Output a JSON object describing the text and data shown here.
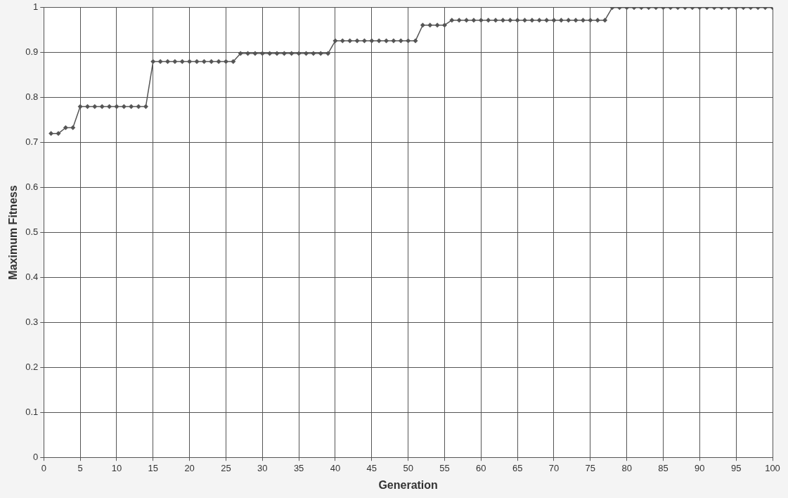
{
  "chart_data": {
    "type": "line",
    "xlabel": "Generation",
    "ylabel": "Maximum Fitness",
    "x": [
      1,
      2,
      3,
      4,
      5,
      6,
      7,
      8,
      9,
      10,
      11,
      12,
      13,
      14,
      15,
      16,
      17,
      18,
      19,
      20,
      21,
      22,
      23,
      24,
      25,
      26,
      27,
      28,
      29,
      30,
      31,
      32,
      33,
      34,
      35,
      36,
      37,
      38,
      39,
      40,
      41,
      42,
      43,
      44,
      45,
      46,
      47,
      48,
      49,
      50,
      51,
      52,
      53,
      54,
      55,
      56,
      57,
      58,
      59,
      60,
      61,
      62,
      63,
      64,
      65,
      66,
      67,
      68,
      69,
      70,
      71,
      72,
      73,
      74,
      75,
      76,
      77,
      78,
      79,
      80,
      81,
      82,
      83,
      84,
      85,
      86,
      87,
      88,
      89,
      90,
      91,
      92,
      93,
      94,
      95,
      96,
      97,
      98,
      99,
      100
    ],
    "series": [
      {
        "color": "#555555",
        "values": [
          0.72,
          0.72,
          0.733,
          0.733,
          0.78,
          0.78,
          0.78,
          0.78,
          0.78,
          0.78,
          0.78,
          0.78,
          0.78,
          0.78,
          0.88,
          0.88,
          0.88,
          0.88,
          0.88,
          0.88,
          0.88,
          0.88,
          0.88,
          0.88,
          0.88,
          0.88,
          0.898,
          0.898,
          0.898,
          0.898,
          0.898,
          0.898,
          0.898,
          0.898,
          0.898,
          0.898,
          0.898,
          0.898,
          0.898,
          0.926,
          0.926,
          0.926,
          0.926,
          0.926,
          0.926,
          0.926,
          0.926,
          0.926,
          0.926,
          0.926,
          0.926,
          0.961,
          0.961,
          0.961,
          0.961,
          0.972,
          0.972,
          0.972,
          0.972,
          0.972,
          0.972,
          0.972,
          0.972,
          0.972,
          0.972,
          0.972,
          0.972,
          0.972,
          0.972,
          0.972,
          0.972,
          0.972,
          0.972,
          0.972,
          0.972,
          0.972,
          0.972,
          1,
          1,
          1,
          1,
          1,
          1,
          1,
          1,
          1,
          1,
          1,
          1,
          1,
          1,
          1,
          1,
          1,
          1,
          1,
          1,
          1,
          1,
          1
        ]
      }
    ],
    "xlim": [
      0,
      100
    ],
    "xticks": [
      0,
      5,
      10,
      15,
      20,
      25,
      30,
      35,
      40,
      45,
      50,
      55,
      60,
      65,
      70,
      75,
      80,
      85,
      90,
      95,
      100
    ],
    "ylim": [
      0,
      1
    ],
    "yticks": [
      0,
      0.1,
      0.2,
      0.3,
      0.4,
      0.5,
      0.6,
      0.7,
      0.8,
      0.9,
      1
    ],
    "grid": true,
    "legend": false,
    "marker": "diamond",
    "line_style": "solid"
  }
}
